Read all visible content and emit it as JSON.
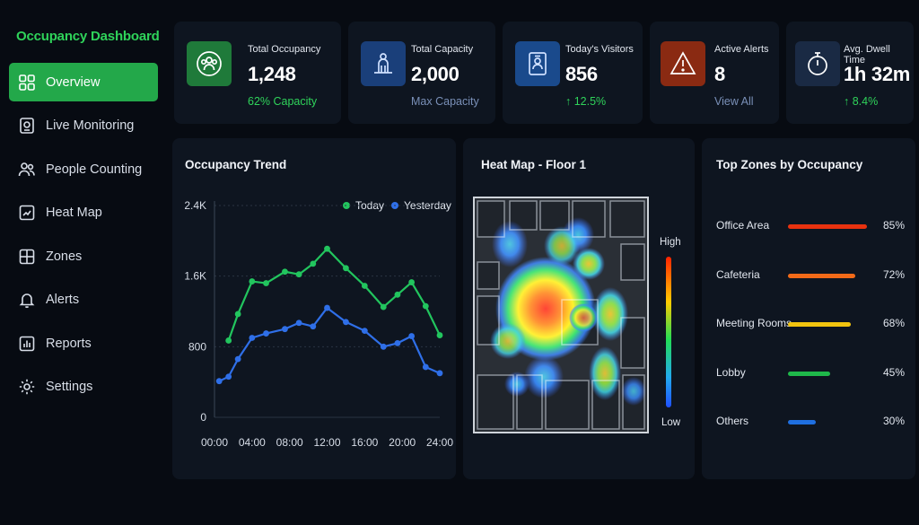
{
  "app": {
    "title": "Occupancy Dashboard"
  },
  "sidebar": {
    "items": [
      {
        "label": "Overview",
        "icon": "grid-icon",
        "active": true
      },
      {
        "label": "Live Monitoring",
        "icon": "camera-icon",
        "active": false
      },
      {
        "label": "People Counting",
        "icon": "people-icon",
        "active": false
      },
      {
        "label": "Heat Map",
        "icon": "heatmap-icon",
        "active": false
      },
      {
        "label": "Zones",
        "icon": "zones-icon",
        "active": false
      },
      {
        "label": "Alerts",
        "icon": "bell-icon",
        "active": false
      },
      {
        "label": "Reports",
        "icon": "report-icon",
        "active": false
      },
      {
        "label": "Settings",
        "icon": "gear-icon",
        "active": false
      }
    ]
  },
  "kpis": [
    {
      "title": "Total Occupancy",
      "value": "1,248",
      "sub": "62% Capacity",
      "icon": "people-group-icon",
      "color": "#1f7a3a",
      "sub_color": "#2fd35a"
    },
    {
      "title": "Total Capacity",
      "value": "2,000",
      "sub": "Max Capacity",
      "icon": "building-person-icon",
      "color": "#1a3f7a",
      "sub_color": "#7a90b8"
    },
    {
      "title": "Today's Visitors",
      "value": "856",
      "sub": "↑ 12.5%",
      "icon": "visitor-badge-icon",
      "color": "#1a4a8c",
      "sub_color": "#2fd35a"
    },
    {
      "title": "Active Alerts",
      "value": "8",
      "sub": "View All",
      "icon": "warning-icon",
      "color": "#8a2a12",
      "sub_color": "#7a90b8"
    },
    {
      "title": "Avg. Dwell Time",
      "value": "1h 32m",
      "sub": "↑ 8.4%",
      "icon": "stopwatch-icon",
      "color": "#1a2a44",
      "sub_color": "#2fd35a"
    }
  ],
  "trend": {
    "title": "Occupancy Trend",
    "legend": [
      {
        "name": "Today",
        "color": "#22c55e"
      },
      {
        "name": "Yesterday",
        "color": "#2f6fe8"
      }
    ]
  },
  "chart_data": {
    "type": "line",
    "xlabel": "",
    "ylabel": "",
    "x_ticks": [
      "00:00",
      "04:00",
      "08:00",
      "12:00",
      "16:00",
      "20:00",
      "24:00"
    ],
    "y_ticks": [
      "0",
      "800",
      "1.6K",
      "2.4K"
    ],
    "xlim": [
      0,
      24
    ],
    "ylim": [
      0,
      2400
    ],
    "grid": true,
    "legend_position": "top-right",
    "series": [
      {
        "name": "Today",
        "color": "#22c55e",
        "x": [
          1.5,
          2.5,
          4,
          5.5,
          7.5,
          9,
          10.5,
          12,
          14,
          16,
          18,
          19.5,
          21,
          22.5,
          24
        ],
        "y": [
          870,
          1170,
          1540,
          1520,
          1650,
          1620,
          1740,
          1910,
          1690,
          1490,
          1250,
          1390,
          1530,
          1260,
          930
        ]
      },
      {
        "name": "Yesterday",
        "color": "#2f6fe8",
        "x": [
          0.5,
          1.5,
          2.5,
          4,
          5.5,
          7.5,
          9,
          10.5,
          12,
          14,
          16,
          18,
          19.5,
          21,
          22.5,
          24
        ],
        "y": [
          410,
          460,
          660,
          900,
          950,
          1000,
          1070,
          1030,
          1240,
          1080,
          980,
          800,
          840,
          920,
          570,
          500
        ]
      }
    ]
  },
  "heatmap": {
    "title": "Heat Map - Floor 1",
    "high_label": "High",
    "low_label": "Low"
  },
  "zones": {
    "title": "Top Zones by Occupancy",
    "items": [
      {
        "name": "Office Area",
        "value": 85,
        "label": "85%",
        "color": "#e8320f"
      },
      {
        "name": "Cafeteria",
        "value": 72,
        "label": "72%",
        "color": "#f26a18"
      },
      {
        "name": "Meeting Rooms",
        "value": 68,
        "label": "68%",
        "color": "#f2c40f"
      },
      {
        "name": "Lobby",
        "value": 45,
        "label": "45%",
        "color": "#1fb84a"
      },
      {
        "name": "Others",
        "value": 30,
        "label": "30%",
        "color": "#1f6fe0"
      }
    ]
  }
}
